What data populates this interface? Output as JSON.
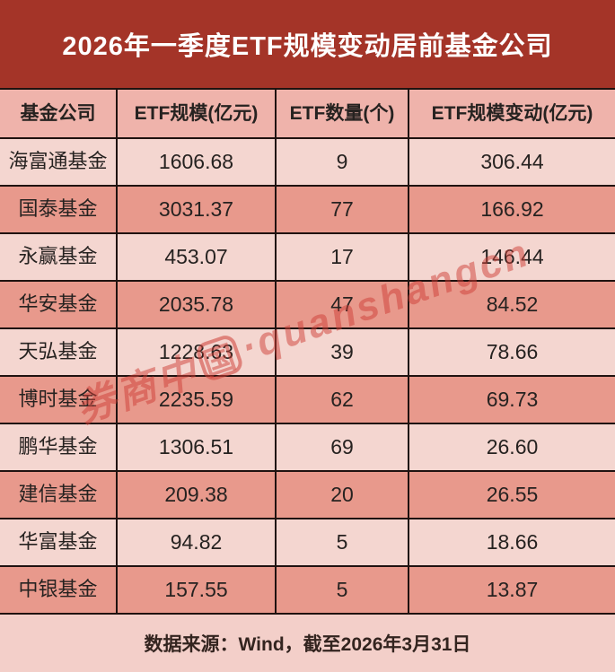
{
  "banner": {
    "title": "2026年一季度ETF规模变动居前基金公司"
  },
  "chart_data": {
    "type": "table",
    "title": "2026年一季度ETF规模变动居前基金公司",
    "columns": [
      "基金公司",
      "ETF规模(亿元)",
      "ETF数量(个)",
      "ETF规模变动(亿元)"
    ],
    "rows": [
      [
        "海富通基金",
        "1606.68",
        "9",
        "306.44"
      ],
      [
        "国泰基金",
        "3031.37",
        "77",
        "166.92"
      ],
      [
        "永赢基金",
        "453.07",
        "17",
        "146.44"
      ],
      [
        "华安基金",
        "2035.78",
        "47",
        "84.52"
      ],
      [
        "天弘基金",
        "1228.63",
        "39",
        "78.66"
      ],
      [
        "博时基金",
        "2235.59",
        "62",
        "69.73"
      ],
      [
        "鹏华基金",
        "1306.51",
        "69",
        "26.60"
      ],
      [
        "建信基金",
        "209.38",
        "20",
        "26.55"
      ],
      [
        "华富基金",
        "94.82",
        "5",
        "18.66"
      ],
      [
        "中银基金",
        "157.55",
        "5",
        "13.87"
      ]
    ],
    "source_note": "数据来源：Wind，截至2026年3月31日"
  },
  "watermark": {
    "prefix": "券商中",
    "circled": "国",
    "suffix": "·quanshangcn"
  },
  "colors": {
    "banner_bg": "#a43428",
    "header_row_bg": "#efb3ab",
    "row_light_bg": "#f4d6d0",
    "row_dark_bg": "#e8998c",
    "footer_bg": "#f3cfc9",
    "border": "#1f1210",
    "watermark": "#cd3e35"
  }
}
